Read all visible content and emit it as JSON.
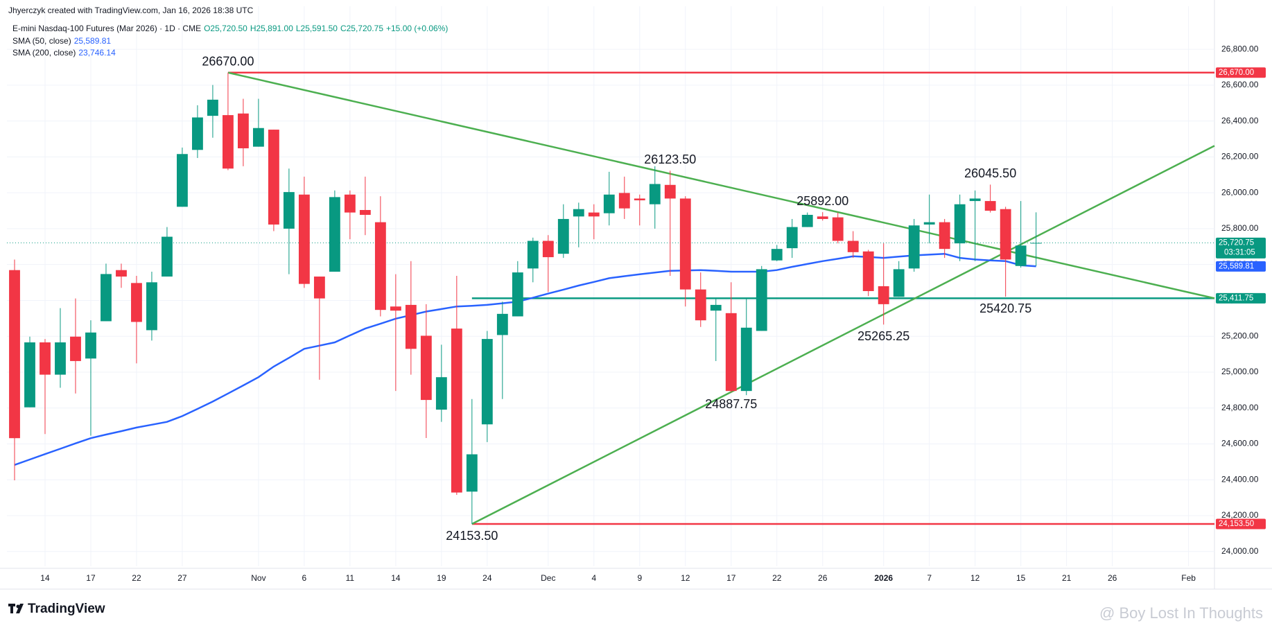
{
  "header": {
    "credit": "Jhyerczyk created with TradingView.com, Jan 16, 2026 18:38 UTC",
    "symbol": "E-mini Nasdaq-100 Futures (Mar 2026) · 1D · CME",
    "open": "O25,720.50",
    "high": "H25,891.00",
    "low": "L25,591.50",
    "close": "C25,720.75",
    "change": "+15.00 (+0.06%)",
    "sma200_name": "SMA (200, close)",
    "sma200_value": "23,746.14"
  },
  "footer": {
    "logo": "TradingView",
    "watermark": "@ Boy Lost In Thoughts"
  },
  "chart_data": {
    "type": "candlestick",
    "up_color": "#089981",
    "down_color": "#f23645",
    "open": [
      25569,
      24804,
      25166,
      24986,
      25198,
      25076,
      25284,
      25569,
      25497,
      25234,
      25533,
      25922,
      26239,
      26429,
      26433,
      26442,
      26257,
      26352,
      25800,
      25990,
      25533,
      25560,
      25990,
      25904,
      25836,
      25366,
      25375,
      25203,
      24791,
      25243,
      24334,
      24709,
      25207,
      25311,
      25578,
      25732,
      25660,
      25868,
      25890,
      25886,
      25999,
      25968,
      25936,
      26044,
      25968,
      25461,
      25343,
      25329,
      24895,
      25230,
      25623,
      25691,
      25809,
      25868,
      25863,
      25732,
      25673,
      25479,
      25420,
      25578,
      25823,
      25836,
      25718,
      25954,
      25954,
      25909,
      25592,
      25720.5
    ],
    "high": [
      25628,
      25198,
      25185,
      25357,
      25411,
      25289,
      25605,
      25605,
      25537,
      25560,
      25809,
      26252,
      26488,
      26601,
      26670,
      26524,
      26524,
      26352,
      26135,
      26090,
      25533,
      26013,
      26013,
      26090,
      25981,
      25546,
      25619,
      25379,
      25153,
      25537,
      24850,
      25230,
      25393,
      25619,
      25750,
      25764,
      25936,
      25945,
      25936,
      26117,
      26090,
      25990,
      26148,
      26123.5,
      25981,
      25556,
      25411,
      25501,
      25411,
      25592,
      25709,
      25854,
      25890,
      25892,
      25890,
      25786,
      25682,
      25718,
      25619,
      25854,
      25990,
      25854,
      25990,
      26013,
      26045.5,
      25922,
      25954,
      25891
    ],
    "low": [
      24397,
      24804,
      24655,
      24913,
      24881,
      24646,
      25284,
      25470,
      25049,
      25176,
      25533,
      25922,
      26194,
      26307,
      26126,
      26148,
      26257,
      25786,
      25546,
      25470,
      24958,
      25560,
      25741,
      25764,
      25311,
      24895,
      24986,
      24633,
      24723,
      24316,
      24153.5,
      24610,
      24850,
      25311,
      25501,
      25447,
      25637,
      25696,
      25741,
      25818,
      25854,
      25818,
      25800,
      25537,
      25366,
      25252,
      25062,
      24887.75,
      24872,
      25230,
      25619,
      25637,
      25809,
      25845,
      25718,
      25637,
      25424,
      25265.25,
      25420,
      25560,
      25718,
      25637,
      25619,
      25619,
      25890,
      25420.75,
      25583,
      25591.5
    ],
    "close": [
      24632,
      25166,
      24986,
      25166,
      25062,
      25221,
      25547,
      25533,
      25280,
      25501,
      25755,
      26216,
      26420,
      26519,
      26135,
      26248,
      26361,
      25823,
      26004,
      25492,
      25411,
      25976,
      25890,
      25877,
      25347,
      25343,
      25130,
      24845,
      24972,
      24329,
      24542,
      25185,
      25325,
      25556,
      25732,
      25641,
      25854,
      25909,
      25868,
      25990,
      25913,
      25958,
      26049,
      25968,
      25461,
      25289,
      25375,
      24895,
      25248,
      25574,
      25687,
      25809,
      25877,
      25854,
      25732,
      25669,
      25452,
      25379,
      25574,
      25818,
      25836,
      25687,
      25936,
      25968,
      25900,
      25628,
      25705.75,
      25720.75
    ],
    "sma50": {
      "name": "SMA (50, close)",
      "color": "#2962ff",
      "label": "25,589.81",
      "values": [
        24483,
        24513,
        24543,
        24573,
        24603,
        24632,
        24652,
        24671,
        24691,
        24707,
        24723,
        24755,
        24795,
        24836,
        24881,
        24926,
        24972,
        25031,
        25080,
        25130,
        25148,
        25166,
        25205,
        25243,
        25270,
        25298,
        25318,
        25338,
        25352,
        25366,
        25370,
        25375,
        25384,
        25393,
        25415,
        25438,
        25460,
        25483,
        25503,
        25524,
        25535,
        25546,
        25555,
        25565,
        25567,
        25569,
        25565,
        25560,
        25560,
        25560,
        25569,
        25587,
        25603,
        25619,
        25632,
        25646,
        25642,
        25637,
        25644,
        25651,
        25655,
        25660,
        25637,
        25628,
        25623,
        25619,
        25596,
        25589.81
      ]
    },
    "last_price": {
      "value": 25720.75,
      "label": "25,720.75",
      "countdown": "03:31:05",
      "color": "#089981"
    },
    "levels": [
      {
        "value": 26670,
        "label": "26,670.00",
        "from": 14,
        "color": "#f23645"
      },
      {
        "value": 25411.75,
        "label": "25,411.75",
        "from": 30,
        "color": "#089981"
      },
      {
        "value": 24153.5,
        "label": "24,153.50",
        "from": 30,
        "color": "#f23645"
      }
    ],
    "trendlines": [
      {
        "color": "#4caf50",
        "points": [
          [
            14,
            26670
          ],
          [
            78.7,
            25411.75
          ]
        ]
      },
      {
        "color": "#4caf50",
        "points": [
          [
            30,
            24153.5
          ],
          [
            78.7,
            26262
          ]
        ]
      }
    ],
    "annotations": [
      {
        "label": "26670.00",
        "index": 14,
        "value": 26670
      },
      {
        "label": "26123.50",
        "index": 43,
        "value": 26123.5
      },
      {
        "label": "25892.00",
        "index": 53,
        "value": 25892
      },
      {
        "label": "26045.50",
        "index": 64,
        "value": 26045.5
      },
      {
        "label": "24153.50",
        "index": 30,
        "value": 24153.5
      },
      {
        "label": "24887.75",
        "index": 47,
        "value": 24887.75
      },
      {
        "label": "25265.25",
        "index": 57,
        "value": 25265.25
      },
      {
        "label": "25420.75",
        "index": 65,
        "value": 25420.75
      }
    ],
    "xlim": [
      -0.5,
      78.7
    ],
    "ylim": [
      23918,
      27040
    ],
    "yticks": [
      {
        "value": 24000,
        "label": "24,000.00"
      },
      {
        "value": 24200,
        "label": "24,200.00"
      },
      {
        "value": 24400,
        "label": "24,400.00"
      },
      {
        "value": 24600,
        "label": "24,600.00"
      },
      {
        "value": 24800,
        "label": "24,800.00"
      },
      {
        "value": 25000,
        "label": "25,000.00"
      },
      {
        "value": 25200,
        "label": "25,200.00"
      },
      {
        "value": 25400,
        "label": "25,400.00"
      },
      {
        "value": 25600,
        "label": "25,600.00"
      },
      {
        "value": 25800,
        "label": "25,800.00"
      },
      {
        "value": 26000,
        "label": "26,000.00"
      },
      {
        "value": 26200,
        "label": "26,200.00"
      },
      {
        "value": 26400,
        "label": "26,400.00"
      },
      {
        "value": 26600,
        "label": "26,600.00"
      },
      {
        "value": 26800,
        "label": "26,800.00"
      }
    ],
    "xticks": [
      {
        "value": 2,
        "label": "14"
      },
      {
        "value": 5,
        "label": "17"
      },
      {
        "value": 8,
        "label": "22"
      },
      {
        "value": 11,
        "label": "27"
      },
      {
        "value": 16,
        "label": "Nov"
      },
      {
        "value": 19,
        "label": "6"
      },
      {
        "value": 22,
        "label": "11"
      },
      {
        "value": 25,
        "label": "14"
      },
      {
        "value": 28,
        "label": "19"
      },
      {
        "value": 31,
        "label": "24"
      },
      {
        "value": 35,
        "label": "Dec"
      },
      {
        "value": 38,
        "label": "4"
      },
      {
        "value": 41,
        "label": "9"
      },
      {
        "value": 44,
        "label": "12"
      },
      {
        "value": 47,
        "label": "17"
      },
      {
        "value": 50,
        "label": "22"
      },
      {
        "value": 53,
        "label": "26"
      },
      {
        "value": 57,
        "label": "2026"
      },
      {
        "value": 60,
        "label": "7"
      },
      {
        "value": 63,
        "label": "12"
      },
      {
        "value": 66,
        "label": "15"
      },
      {
        "value": 69,
        "label": "21"
      },
      {
        "value": 72,
        "label": "26"
      },
      {
        "value": 77,
        "label": "Feb"
      }
    ],
    "grid": true
  }
}
